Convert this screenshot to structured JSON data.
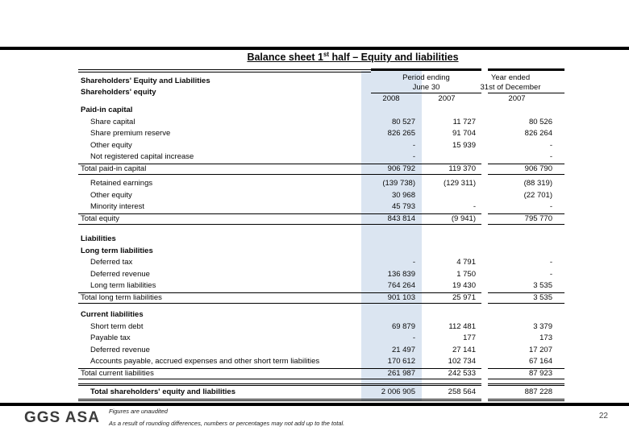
{
  "slide": {
    "title_pre": "Balance sheet 1",
    "title_sup": "st",
    "title_post": " half – Equity and liabilities",
    "logo": "GGS ASA",
    "footnote1": "Figures are unaudited",
    "footnote2": "As a result of rounding differences, numbers or percentages may not add up to the total.",
    "page_number": "22",
    "accent_band_color": "#dbe5f1"
  },
  "table": {
    "header": {
      "row_label_title": "Shareholders' Equity and Liabilities",
      "row_label_subtitle": "Shareholders' equity",
      "group1_line1": "Period ending",
      "group1_line2": "June 30",
      "group2_line1": "Year ended",
      "group2_line2": "31st of December",
      "col_years": [
        "2008",
        "2007",
        "2007"
      ]
    },
    "rows": [
      {
        "type": "section",
        "label": "Paid-in capital",
        "v1": "",
        "v2": "",
        "v3": ""
      },
      {
        "type": "item",
        "label": "Share capital",
        "v1": "80 527",
        "v2": "11 727",
        "v3": "80 526"
      },
      {
        "type": "item",
        "label": "Share premium reserve",
        "v1": "826 265",
        "v2": "91 704",
        "v3": "826 264"
      },
      {
        "type": "item",
        "label": "Other equity",
        "v1": "-",
        "v2": "15 939",
        "v3": "-"
      },
      {
        "type": "item",
        "label": "Not registered capital increase",
        "v1": "-",
        "v2": "",
        "v3": "-"
      },
      {
        "type": "total",
        "label": "Total paid-in capital",
        "v1": "906 792",
        "v2": "119 370",
        "v3": "906 790"
      },
      {
        "type": "spacer",
        "h": 4
      },
      {
        "type": "item",
        "label": "Retained earnings",
        "v1": "(139 738)",
        "v2": "(129 311)",
        "v3": "(88 319)"
      },
      {
        "type": "item",
        "label": "Other equity",
        "v1": "30 968",
        "v2": "",
        "v3": "(22 701)"
      },
      {
        "type": "item",
        "label": "Minority interest",
        "v1": "45 793",
        "v2": "-",
        "v3": "-"
      },
      {
        "type": "total",
        "label": "Total equity",
        "v1": "843 814",
        "v2": "(9 941)",
        "v3": "795 770"
      },
      {
        "type": "spacer",
        "h": 11
      },
      {
        "type": "section",
        "label": "Liabilities",
        "v1": "",
        "v2": "",
        "v3": ""
      },
      {
        "type": "section",
        "label": "Long term liabilities",
        "v1": "",
        "v2": "",
        "v3": ""
      },
      {
        "type": "item",
        "label": "Deferred tax",
        "v1": "-",
        "v2": "4 791",
        "v3": "-"
      },
      {
        "type": "item",
        "label": "Deferred revenue",
        "v1": "136 839",
        "v2": "1 750",
        "v3": "-"
      },
      {
        "type": "item",
        "label": "Long term liabilities",
        "v1": "764 264",
        "v2": "19 430",
        "v3": "3 535"
      },
      {
        "type": "total",
        "label": "Total long term liabilities",
        "v1": "901 103",
        "v2": "25 971",
        "v3": "3 535"
      },
      {
        "type": "spacer",
        "h": 7
      },
      {
        "type": "section",
        "label": "Current liabilities",
        "v1": "",
        "v2": "",
        "v3": ""
      },
      {
        "type": "item",
        "label": "Short term debt",
        "v1": "69 879",
        "v2": "112 481",
        "v3": "3 379"
      },
      {
        "type": "item",
        "label": "Payable tax",
        "v1": "-",
        "v2": "177",
        "v3": "173"
      },
      {
        "type": "item",
        "label": "Deferred revenue",
        "v1": "21 497",
        "v2": "27 141",
        "v3": "17 207"
      },
      {
        "type": "item",
        "label": "Accounts payable, accrued expenses and other short term liabilities",
        "v1": "170 612",
        "v2": "102 734",
        "v3": "67 164"
      },
      {
        "type": "total",
        "label": "Total current liabilities",
        "v1": "261 987",
        "v2": "242 533",
        "v3": "87 923"
      },
      {
        "type": "spacer",
        "h": 5
      },
      {
        "type": "grandtotal",
        "label": "Total shareholders' equity and liabilities",
        "v1": "2 006 905",
        "v2": "258 564",
        "v3": "887 228"
      }
    ]
  }
}
